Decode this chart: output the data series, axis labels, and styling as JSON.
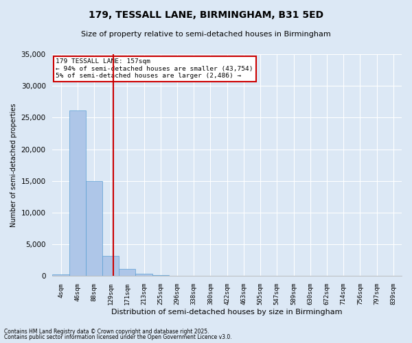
{
  "title_line1": "179, TESSALL LANE, BIRMINGHAM, B31 5ED",
  "title_line2": "Size of property relative to semi-detached houses in Birmingham",
  "xlabel": "Distribution of semi-detached houses by size in Birmingham",
  "ylabel": "Number of semi-detached properties",
  "annotation_title": "179 TESSALL LANE: 157sqm",
  "annotation_line2": "← 94% of semi-detached houses are smaller (43,754)",
  "annotation_line3": "5% of semi-detached houses are larger (2,486) →",
  "footnote1": "Contains HM Land Registry data © Crown copyright and database right 2025.",
  "footnote2": "Contains public sector information licensed under the Open Government Licence v3.0.",
  "bin_labels": [
    "4sqm",
    "46sqm",
    "88sqm",
    "129sqm",
    "171sqm",
    "213sqm",
    "255sqm",
    "296sqm",
    "338sqm",
    "380sqm",
    "422sqm",
    "463sqm",
    "505sqm",
    "547sqm",
    "589sqm",
    "630sqm",
    "672sqm",
    "714sqm",
    "756sqm",
    "797sqm",
    "839sqm"
  ],
  "bar_values": [
    300,
    26100,
    15000,
    3200,
    1100,
    400,
    150,
    100,
    0,
    0,
    0,
    0,
    0,
    0,
    0,
    0,
    0,
    0,
    0,
    0,
    0
  ],
  "bar_color": "#aec6e8",
  "bar_edge_color": "#5a9fd4",
  "vline_color": "#cc0000",
  "ylim": [
    0,
    35000
  ],
  "yticks": [
    0,
    5000,
    10000,
    15000,
    20000,
    25000,
    30000,
    35000
  ],
  "background_color": "#dce8f5",
  "grid_color": "#ffffff",
  "annotation_box_color": "#ffffff",
  "annotation_box_edge": "#cc0000",
  "fig_width": 6.0,
  "fig_height": 5.0,
  "dpi": 100
}
